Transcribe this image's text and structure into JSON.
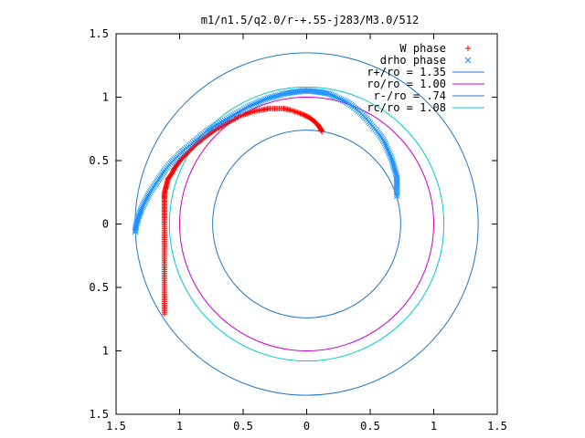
{
  "chart_data": {
    "type": "scatter",
    "title": "m1/n1.5/q2.0/r-+.55-j283/M3.0/512",
    "xlabel": "",
    "ylabel": "",
    "xlim": [
      -1.5,
      1.5
    ],
    "ylim": [
      -1.5,
      1.5
    ],
    "x_ticks": [
      -1.5,
      -1,
      -0.5,
      0,
      0.5,
      1,
      1.5
    ],
    "y_ticks": [
      -1.5,
      -1,
      -0.5,
      0,
      0.5,
      1,
      1.5
    ],
    "x_tick_labels": [
      "1.5",
      "1",
      "0.5",
      "0",
      "0.5",
      "1",
      "1.5"
    ],
    "y_tick_labels": [
      "1.5",
      "1",
      "0.5",
      "0",
      "0.5",
      "1",
      "1.5"
    ],
    "grid": false,
    "legend_position": "top-right",
    "series": [
      {
        "name": "W phase",
        "kind": "points",
        "marker": "plus",
        "color": "#ff0000",
        "x": [
          -1.12,
          -1.12,
          -1.12,
          -1.12,
          -1.12,
          -1.12,
          -1.12,
          -1.12,
          -1.12,
          -1.12,
          -1.12,
          -1.12,
          -1.12,
          -1.12,
          -1.12,
          -1.12,
          -1.11,
          -1.1,
          -1.09,
          -1.06,
          -1.04,
          -1.01,
          -0.98,
          -0.95,
          -0.91,
          -0.87,
          -0.83,
          -0.78,
          -0.74,
          -0.69,
          -0.64,
          -0.58,
          -0.53,
          -0.47,
          -0.41,
          -0.35,
          -0.3,
          -0.24,
          -0.18,
          -0.13,
          -0.07,
          -0.02,
          0.02,
          0.06,
          0.09,
          0.11,
          0.12
        ],
        "y": [
          -0.71,
          -0.64,
          -0.57,
          -0.5,
          -0.43,
          -0.36,
          -0.29,
          -0.22,
          -0.15,
          -0.08,
          -0.01,
          0.05,
          0.1,
          0.15,
          0.2,
          0.24,
          0.28,
          0.32,
          0.36,
          0.4,
          0.44,
          0.48,
          0.52,
          0.55,
          0.59,
          0.63,
          0.66,
          0.7,
          0.73,
          0.76,
          0.79,
          0.82,
          0.85,
          0.87,
          0.89,
          0.9,
          0.91,
          0.91,
          0.91,
          0.9,
          0.88,
          0.86,
          0.84,
          0.81,
          0.78,
          0.75,
          0.73
        ]
      },
      {
        "name": "drho phase",
        "kind": "points",
        "marker": "cross",
        "color": "#1e90ff",
        "x": [
          -1.35,
          -1.34,
          -1.32,
          -1.3,
          -1.27,
          -1.24,
          -1.2,
          -1.16,
          -1.12,
          -1.07,
          -1.02,
          -0.97,
          -0.91,
          -0.85,
          -0.79,
          -0.73,
          -0.66,
          -0.59,
          -0.52,
          -0.45,
          -0.38,
          -0.31,
          -0.24,
          -0.17,
          -0.1,
          -0.03,
          0.03,
          0.1,
          0.17,
          0.23,
          0.3,
          0.36,
          0.42,
          0.47,
          0.52,
          0.57,
          0.61,
          0.64,
          0.67,
          0.69,
          0.71,
          0.71,
          0.71
        ],
        "y": [
          -0.06,
          0.0,
          0.06,
          0.12,
          0.18,
          0.24,
          0.3,
          0.36,
          0.42,
          0.48,
          0.53,
          0.58,
          0.63,
          0.68,
          0.73,
          0.77,
          0.81,
          0.85,
          0.89,
          0.93,
          0.96,
          0.99,
          1.01,
          1.03,
          1.04,
          1.05,
          1.05,
          1.04,
          1.03,
          1.0,
          0.97,
          0.93,
          0.88,
          0.83,
          0.77,
          0.71,
          0.65,
          0.58,
          0.51,
          0.44,
          0.37,
          0.3,
          0.22
        ]
      },
      {
        "name": "r+/ro = 1.35",
        "kind": "circle",
        "radius": 1.35,
        "color": "#1f78c8"
      },
      {
        "name": "ro/ro = 1.00",
        "kind": "circle",
        "radius": 1.0,
        "color": "#cc00cc"
      },
      {
        "name": "r-/ro = .74",
        "kind": "circle",
        "radius": 0.74,
        "color": "#1f78c8"
      },
      {
        "name": "rc/ro = 1.08",
        "kind": "circle",
        "radius": 1.08,
        "color": "#00cccc"
      }
    ]
  }
}
